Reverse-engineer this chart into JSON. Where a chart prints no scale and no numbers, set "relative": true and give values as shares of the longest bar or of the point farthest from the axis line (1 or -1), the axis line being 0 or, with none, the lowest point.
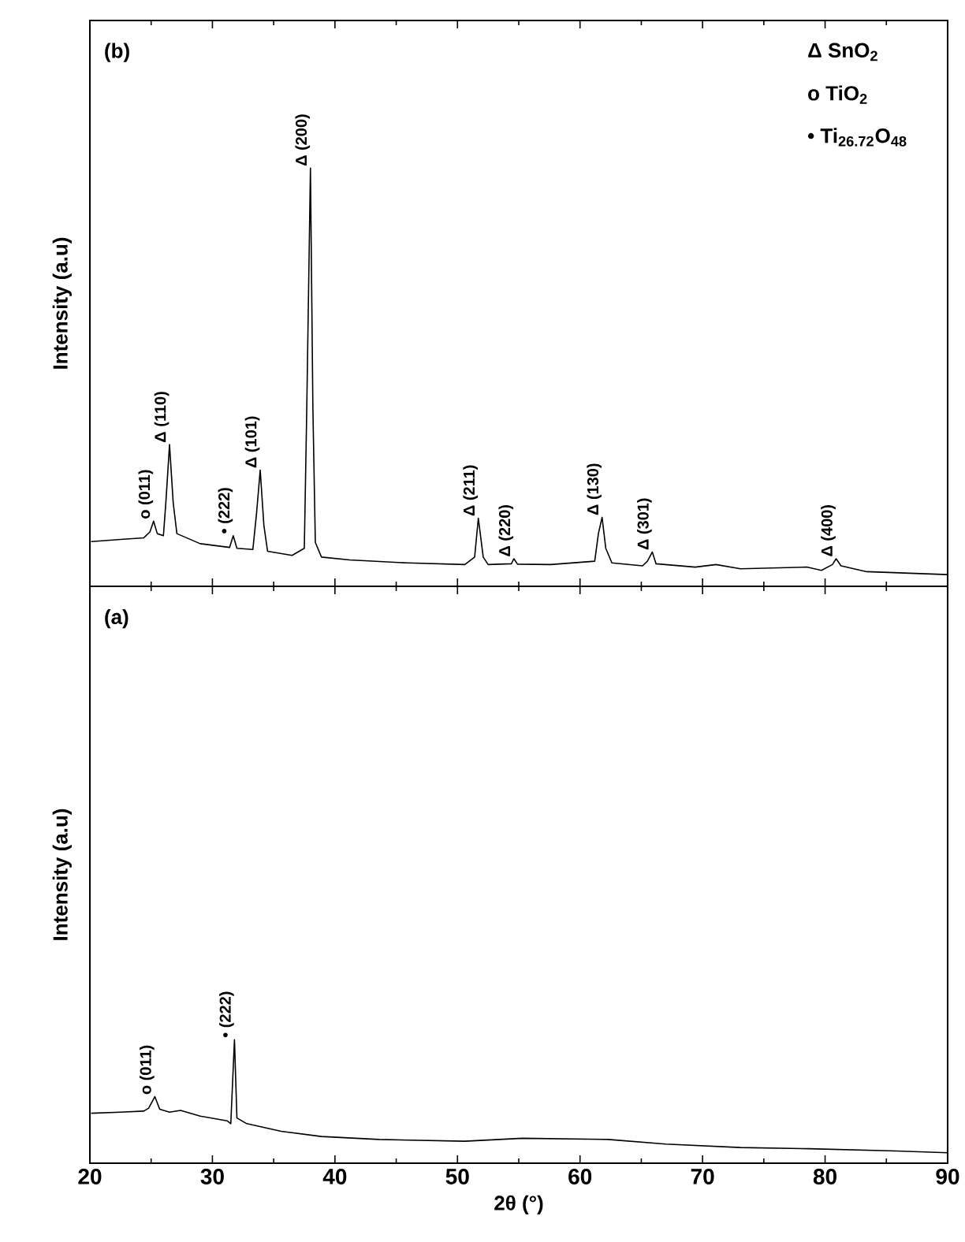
{
  "chart_data": [
    {
      "type": "line",
      "title": "(b)",
      "ylabel": "Intensity (a.u)",
      "relative": true,
      "xlim": [
        20,
        90
      ],
      "xticks": [
        20,
        30,
        40,
        50,
        60,
        70,
        80,
        90
      ],
      "tick_labels": false,
      "x": [
        20.1,
        22.5,
        24.4,
        24.9,
        25.2,
        25.5,
        26.0,
        26.2,
        26.5,
        26.8,
        27.1,
        29.0,
        31.4,
        31.7,
        32.0,
        33.3,
        33.6,
        33.9,
        34.2,
        34.5,
        36.5,
        37.5,
        37.7,
        38.0,
        38.2,
        38.4,
        38.9,
        41.2,
        45.9,
        50.6,
        51.4,
        51.7,
        52.1,
        52.5,
        54.4,
        54.6,
        54.9,
        57.6,
        61.2,
        61.5,
        61.8,
        62.1,
        62.6,
        65.1,
        65.5,
        65.9,
        66.2,
        69.4,
        71.1,
        73.1,
        78.5,
        79.7,
        80.6,
        80.9,
        81.3,
        83.4,
        90.0
      ],
      "series": [
        {
          "color": "#000000",
          "values": [
            0.107,
            0.112,
            0.116,
            0.13,
            0.156,
            0.126,
            0.121,
            0.2,
            0.339,
            0.2,
            0.126,
            0.102,
            0.093,
            0.121,
            0.091,
            0.088,
            0.174,
            0.278,
            0.146,
            0.084,
            0.074,
            0.091,
            0.425,
            1.0,
            0.425,
            0.105,
            0.07,
            0.063,
            0.056,
            0.052,
            0.07,
            0.163,
            0.07,
            0.052,
            0.054,
            0.066,
            0.053,
            0.052,
            0.06,
            0.126,
            0.165,
            0.091,
            0.056,
            0.049,
            0.06,
            0.082,
            0.054,
            0.046,
            0.052,
            0.042,
            0.046,
            0.038,
            0.052,
            0.066,
            0.049,
            0.035,
            0.028
          ]
        }
      ],
      "annotations": [
        "Δ SnO$_{2}$",
        "o TiO$_{2}$",
        "• Ti$_{26.72}$O$_{48}$",
        {
          "text": "o (011)",
          "x": 25.2,
          "y": 0.156
        },
        {
          "text": "Δ (110)",
          "x": 26.5,
          "y": 0.339
        },
        {
          "text": "• (222)",
          "x": 31.7,
          "y": 0.121
        },
        {
          "text": "Δ (101)",
          "x": 33.9,
          "y": 0.278
        },
        {
          "text": "Δ (200)",
          "x": 38.0,
          "y": 1.0
        },
        {
          "text": "Δ (211)",
          "x": 51.7,
          "y": 0.163
        },
        {
          "text": "Δ (220)",
          "x": 54.6,
          "y": 0.066
        },
        {
          "text": "Δ (130)",
          "x": 61.8,
          "y": 0.165
        },
        {
          "text": "Δ (301)",
          "x": 65.9,
          "y": 0.082
        },
        {
          "text": "Δ (400)",
          "x": 80.9,
          "y": 0.066
        }
      ]
    },
    {
      "type": "line",
      "title": "(a)",
      "ylabel": "Intensity (a.u)",
      "xlabel": "2θ (°)",
      "relative": true,
      "xlim": [
        20,
        90
      ],
      "xticks": [
        20,
        30,
        40,
        50,
        60,
        70,
        80,
        90
      ],
      "x": [
        20.1,
        22.5,
        24.4,
        24.8,
        25.3,
        25.7,
        26.5,
        27.4,
        29.0,
        31.2,
        31.5,
        31.8,
        32.0,
        32.8,
        35.6,
        38.9,
        43.6,
        50.6,
        55.3,
        62.3,
        67.0,
        73.1,
        78.7,
        85.8,
        90.0
      ],
      "series": [
        {
          "color": "#000000",
          "values": [
            0.404,
            0.413,
            0.422,
            0.446,
            0.539,
            0.437,
            0.413,
            0.427,
            0.381,
            0.343,
            0.32,
            1.0,
            0.366,
            0.32,
            0.258,
            0.216,
            0.192,
            0.178,
            0.202,
            0.192,
            0.155,
            0.127,
            0.117,
            0.099,
            0.084
          ]
        }
      ],
      "annotations": [
        {
          "text": "o (011)",
          "x": 25.3,
          "y": 0.539
        },
        {
          "text": "• (222)",
          "x": 31.8,
          "y": 1.0
        }
      ]
    }
  ]
}
